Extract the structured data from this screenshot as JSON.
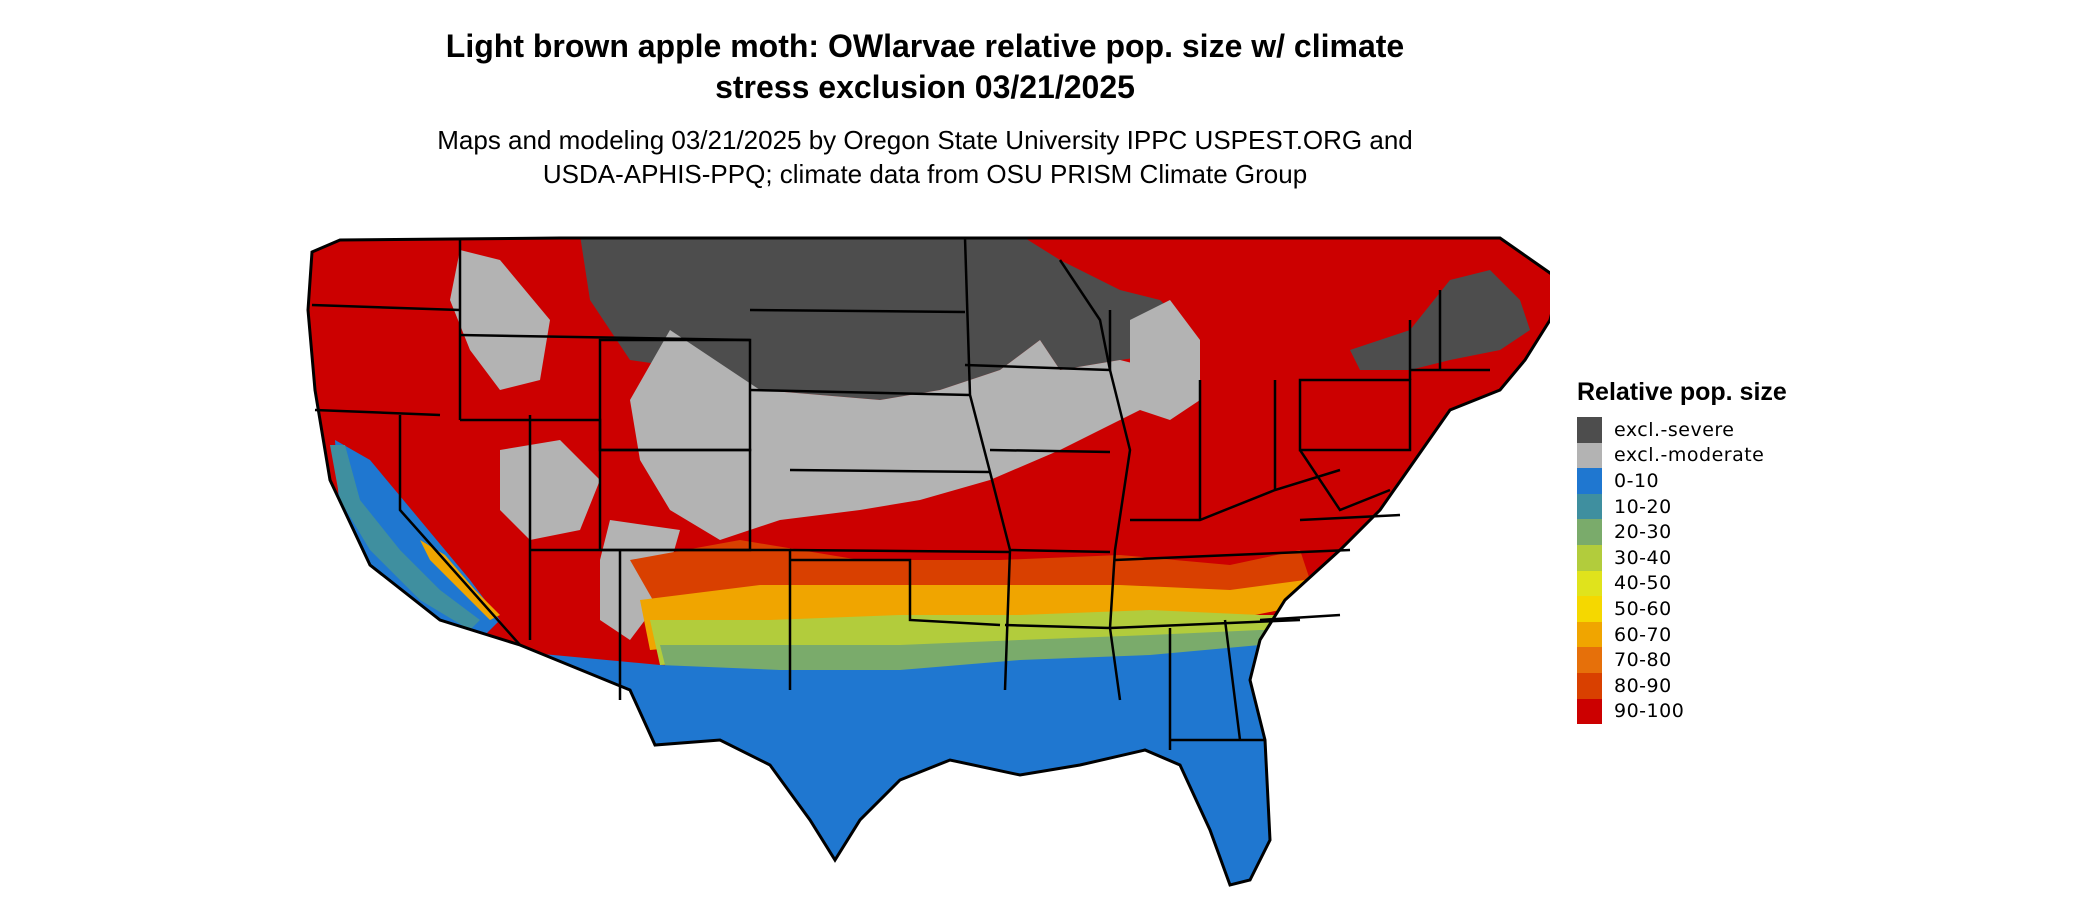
{
  "title": {
    "line1": "Light brown apple moth: OWlarvae relative pop. size w/ climate",
    "line2": "stress exclusion 03/21/2025"
  },
  "subtitle": {
    "line1": "Maps and modeling 03/21/2025 by Oregon State University IPPC USPEST.ORG and",
    "line2": "USDA-APHIS-PPQ; climate data from OSU PRISM Climate Group"
  },
  "map": {
    "region": "Contiguous United States",
    "colors": {
      "excl_severe": "#4d4d4d",
      "excl_moderate": "#b3b3b3",
      "v0_10": "#1f77d0",
      "v10_20": "#3f8f9f",
      "v20_30": "#7aab6b",
      "v30_40": "#b2cc3c",
      "v40_50": "#e0e31c",
      "v50_60": "#f5d800",
      "v60_70": "#f0a500",
      "v70_80": "#e6700a",
      "v80_90": "#d94000",
      "v90_100": "#cc0000",
      "state_border": "#000000"
    }
  },
  "legend": {
    "title": "Relative pop. size",
    "items": [
      {
        "label": "excl.-severe",
        "color": "#4d4d4d"
      },
      {
        "label": "excl.-moderate",
        "color": "#b3b3b3"
      },
      {
        "label": "0-10",
        "color": "#1f77d0"
      },
      {
        "label": "10-20",
        "color": "#3f8f9f"
      },
      {
        "label": "20-30",
        "color": "#7aab6b"
      },
      {
        "label": "30-40",
        "color": "#b2cc3c"
      },
      {
        "label": "40-50",
        "color": "#e0e31c"
      },
      {
        "label": "50-60",
        "color": "#f5d800"
      },
      {
        "label": "60-70",
        "color": "#f0a500"
      },
      {
        "label": "70-80",
        "color": "#e6700a"
      },
      {
        "label": "80-90",
        "color": "#d94000"
      },
      {
        "label": "90-100",
        "color": "#cc0000"
      }
    ]
  }
}
